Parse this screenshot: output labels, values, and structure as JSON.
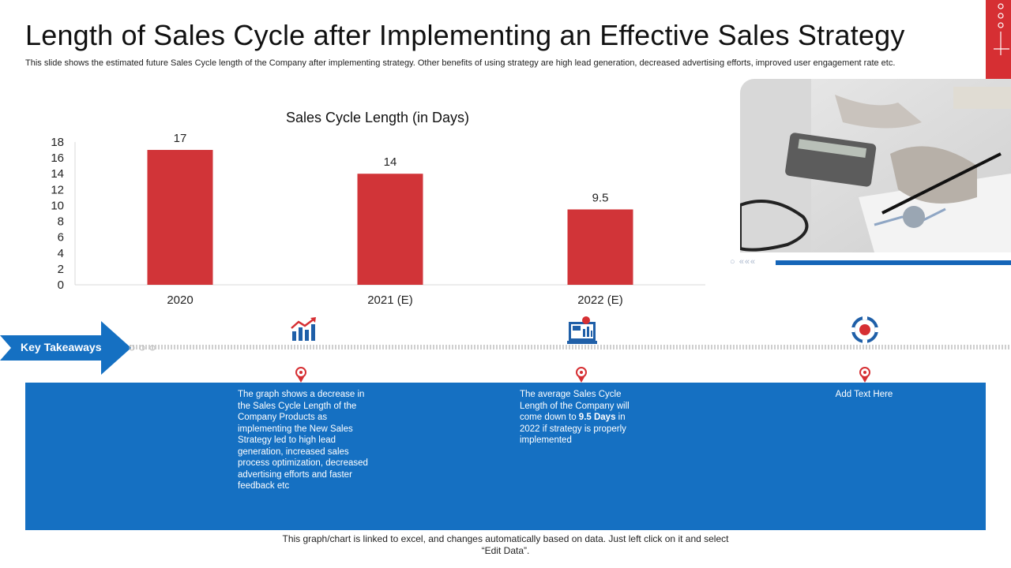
{
  "header": {
    "title": "Length of Sales Cycle after Implementing an Effective Sales Strategy",
    "subtitle": "This slide shows the estimated future Sales Cycle length of the Company after implementing strategy. Other benefits of using strategy are high lead generation, decreased advertising efforts, improved user engagement rate etc."
  },
  "colors": {
    "accent_red": "#d62f33",
    "accent_blue": "#1570c2",
    "bar": "#d13438"
  },
  "chart_data": {
    "type": "bar",
    "title": "Sales Cycle Length (in Days)",
    "categories": [
      "2020",
      "2021 (E)",
      "2022 (E)"
    ],
    "values": [
      17,
      14,
      9.5
    ],
    "data_labels": [
      "17",
      "14",
      "9.5"
    ],
    "ylim": [
      0,
      18
    ],
    "yticks": [
      0,
      2,
      4,
      6,
      8,
      10,
      12,
      14,
      16,
      18
    ],
    "grid": false,
    "legend": "none"
  },
  "takeaways": {
    "label": "Key Takeaways",
    "icons": [
      "growth-chart-icon",
      "dashboard-monitor-icon",
      "refresh-target-icon"
    ],
    "col1": "The graph shows a decrease in the Sales Cycle Length of the Company Products as implementing the New Sales Strategy led to high lead generation, increased sales process optimization, decreased advertising efforts and faster feedback etc",
    "col2_pre": "The average Sales Cycle Length of the Company will come down to ",
    "col2_bold": "9.5 Days",
    "col2_post": " in 2022 if strategy is properly implemented",
    "col3": "Add Text Here"
  },
  "footer": {
    "line1": "This graph/chart is linked to excel, and changes automatically based on data. Just left click on it and select",
    "line2": "“Edit Data”."
  }
}
